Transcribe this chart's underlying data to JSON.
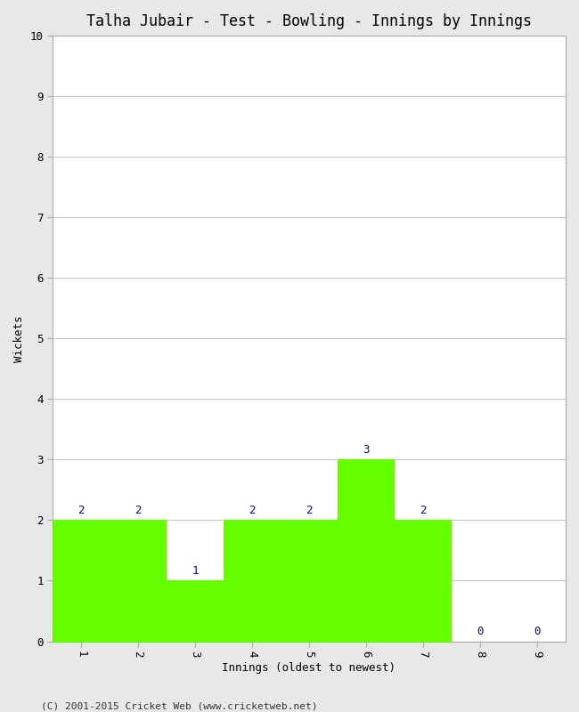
{
  "title": "Talha Jubair - Test - Bowling - Innings by Innings",
  "xlabel": "Innings (oldest to newest)",
  "ylabel": "Wickets",
  "innings": [
    1,
    2,
    3,
    4,
    5,
    6,
    7,
    8,
    9
  ],
  "wickets": [
    2,
    2,
    1,
    2,
    2,
    3,
    2,
    0,
    0
  ],
  "bar_color": "#66ff00",
  "bar_edge_color": "#66ff00",
  "label_color": "#0000cc",
  "ylim": [
    0,
    10
  ],
  "yticks": [
    0,
    1,
    2,
    3,
    4,
    5,
    6,
    7,
    8,
    9,
    10
  ],
  "xticks": [
    1,
    2,
    3,
    4,
    5,
    6,
    7,
    8,
    9
  ],
  "title_fontsize": 12,
  "axis_label_fontsize": 9,
  "tick_fontsize": 9,
  "annotation_fontsize": 9,
  "footer": "(C) 2001-2015 Cricket Web (www.cricketweb.net)",
  "background_color": "#e8e8e8",
  "plot_bg_color": "#ffffff",
  "grid_color": "#c8c8c8"
}
